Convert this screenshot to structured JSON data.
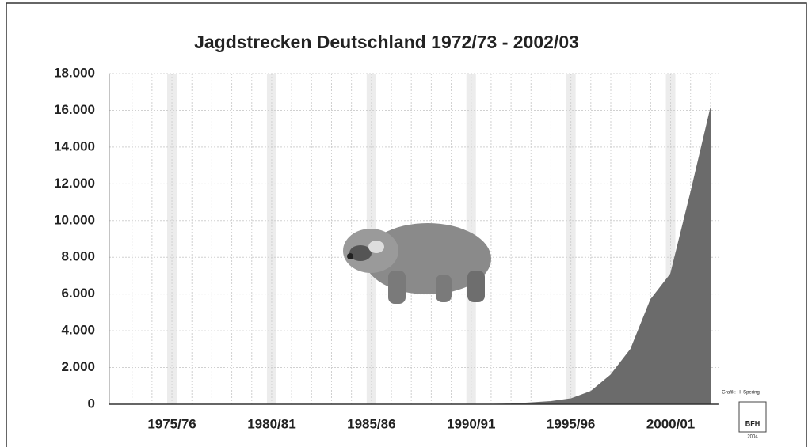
{
  "chart_data": {
    "type": "area",
    "title": "Jagdstrecken Deutschland 1972/73 - 2002/03",
    "categories": [
      null,
      null,
      null,
      "1975/76",
      null,
      null,
      null,
      null,
      "1980/81",
      null,
      null,
      null,
      null,
      "1985/86",
      null,
      null,
      null,
      null,
      "1990/91",
      null,
      null,
      null,
      null,
      "1995/96",
      null,
      null,
      null,
      null,
      "2000/01",
      null,
      null
    ],
    "values": [
      0,
      0,
      0,
      0,
      0,
      0,
      0,
      0,
      0,
      0,
      0,
      0,
      0,
      0,
      0,
      0,
      0,
      0,
      0,
      0,
      20,
      80,
      150,
      300,
      700,
      1600,
      3000,
      5700,
      7100,
      11500,
      16100
    ],
    "color": "#6b6b6b",
    "ylim": [
      0,
      18000
    ],
    "yticks": [
      0,
      {
        "value": 2000,
        "label": "2.000"
      },
      {
        "value": 4000,
        "label": "4.000"
      },
      {
        "value": 6000,
        "label": "6.000"
      },
      {
        "value": 8000,
        "label": "8.000"
      },
      {
        "value": 10000,
        "label": "10.000"
      },
      {
        "value": 12000,
        "label": "12.000"
      },
      {
        "value": 14000,
        "label": "14.000"
      },
      {
        "value": 16000,
        "label": "16.000"
      },
      {
        "value": 18000,
        "label": "18.000"
      }
    ],
    "grid": true
  },
  "credit": {
    "author": "Grafik: H. Spering",
    "logo": "BFH",
    "year": "2004"
  }
}
